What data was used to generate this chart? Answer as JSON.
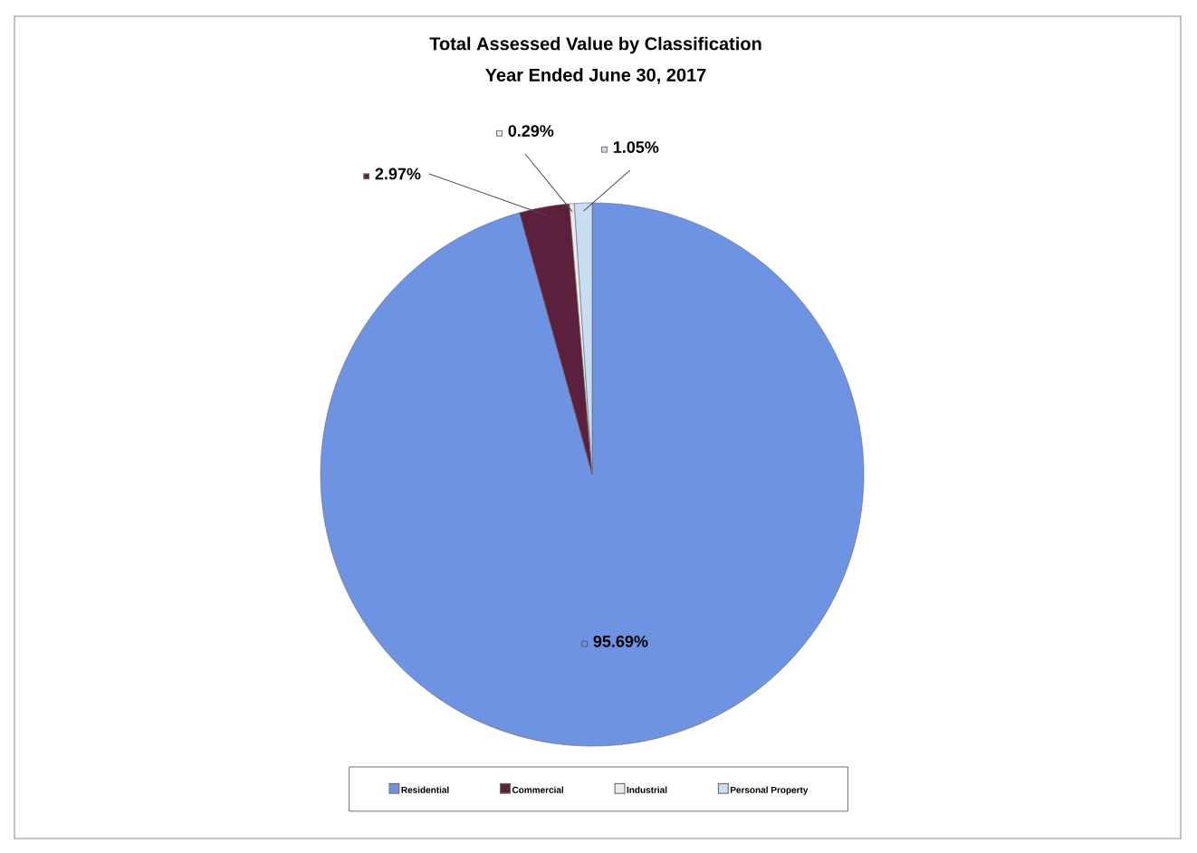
{
  "chart_data": {
    "type": "pie",
    "title": "Total Assessed Value by Classification",
    "subtitle": "Year Ended June 30, 2017",
    "categories": [
      "Residential",
      "Commercial",
      "Industrial",
      "Personal Property"
    ],
    "values": [
      95.69,
      2.97,
      0.29,
      1.05
    ],
    "colors": [
      "#6f93e3",
      "#5c1f3c",
      "#ececec",
      "#c9def2"
    ],
    "value_labels": [
      "95.69%",
      "2.97%",
      "0.29%",
      "1.05%"
    ],
    "legend": "bottom"
  }
}
